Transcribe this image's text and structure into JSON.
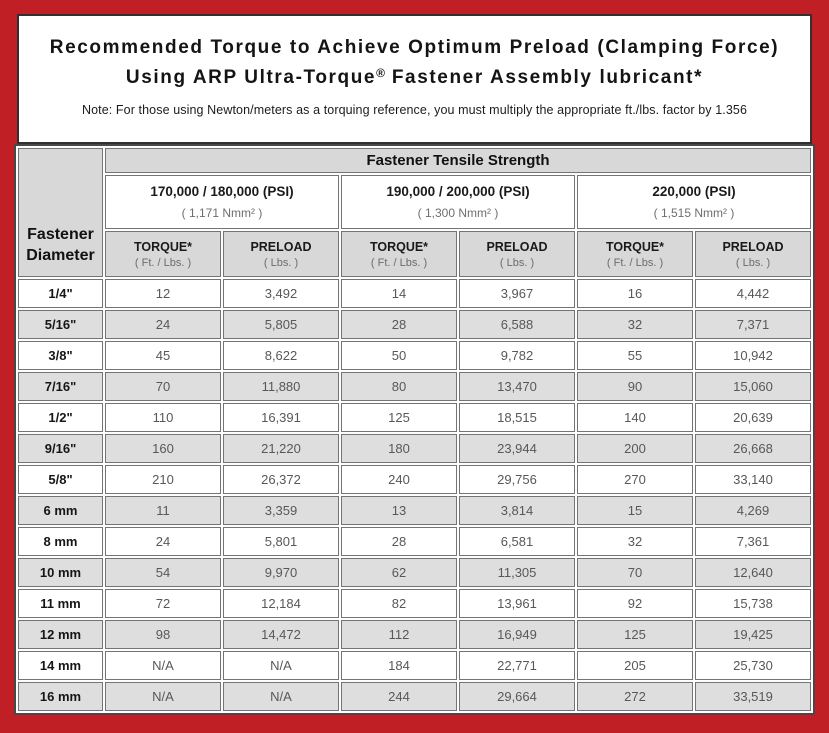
{
  "page": {
    "title_line1": "Recommended Torque to Achieve Optimum Preload (Clamping Force)",
    "subtitle_pre": "Using ARP Ultra-Torque",
    "subtitle_sup": "®",
    "subtitle_post": " Fastener Assembly lubricant*",
    "note": "Note: For those using Newton/meters as a torquing reference, you must multiply the appropriate ft./lbs. factor by 1.356"
  },
  "colors": {
    "frame_red": "#c01f26",
    "header_gray": "#d8d8d8",
    "alt_row_gray": "#dedede",
    "cell_border": "#737476",
    "table_border": "#474849",
    "data_text": "#57585c",
    "label_text": "#111111"
  },
  "chart_data": {
    "type": "table",
    "title": "Recommended Torque to Achieve Optimum Preload (Clamping Force) Using ARP Ultra-Torque® Fastener Assembly lubricant*",
    "note": "Note: For those using Newton/meters as a torquing reference, you must multiply the appropriate ft./lbs. factor by 1.356",
    "tensile_header": "Fastener Tensile Strength",
    "row_header_line1": "Fastener",
    "row_header_line2": "Diameter",
    "column_groups": [
      {
        "psi": "170,000 / 180,000 (PSI)",
        "nmm": "( 1,171 Nmm² )"
      },
      {
        "psi": "190,000 / 200,000 (PSI)",
        "nmm": "( 1,300 Nmm² )"
      },
      {
        "psi": "220,000 (PSI)",
        "nmm": "( 1,515 Nmm² )"
      }
    ],
    "subcolumns": {
      "torque_label": "TORQUE*",
      "torque_unit": "( Ft. / Lbs. )",
      "preload_label": "PRELOAD",
      "preload_unit": "( Lbs. )"
    },
    "rows": [
      {
        "diameter": "1/4\"",
        "values": [
          "12",
          "3,492",
          "14",
          "3,967",
          "16",
          "4,442"
        ]
      },
      {
        "diameter": "5/16\"",
        "values": [
          "24",
          "5,805",
          "28",
          "6,588",
          "32",
          "7,371"
        ]
      },
      {
        "diameter": "3/8\"",
        "values": [
          "45",
          "8,622",
          "50",
          "9,782",
          "55",
          "10,942"
        ]
      },
      {
        "diameter": "7/16\"",
        "values": [
          "70",
          "11,880",
          "80",
          "13,470",
          "90",
          "15,060"
        ]
      },
      {
        "diameter": "1/2\"",
        "values": [
          "110",
          "16,391",
          "125",
          "18,515",
          "140",
          "20,639"
        ]
      },
      {
        "diameter": "9/16\"",
        "values": [
          "160",
          "21,220",
          "180",
          "23,944",
          "200",
          "26,668"
        ]
      },
      {
        "diameter": "5/8\"",
        "values": [
          "210",
          "26,372",
          "240",
          "29,756",
          "270",
          "33,140"
        ]
      },
      {
        "diameter": "6 mm",
        "values": [
          "11",
          "3,359",
          "13",
          "3,814",
          "15",
          "4,269"
        ]
      },
      {
        "diameter": "8 mm",
        "values": [
          "24",
          "5,801",
          "28",
          "6,581",
          "32",
          "7,361"
        ]
      },
      {
        "diameter": "10 mm",
        "values": [
          "54",
          "9,970",
          "62",
          "11,305",
          "70",
          "12,640"
        ]
      },
      {
        "diameter": "11 mm",
        "values": [
          "72",
          "12,184",
          "82",
          "13,961",
          "92",
          "15,738"
        ]
      },
      {
        "diameter": "12 mm",
        "values": [
          "98",
          "14,472",
          "112",
          "16,949",
          "125",
          "19,425"
        ]
      },
      {
        "diameter": "14 mm",
        "values": [
          "N/A",
          "N/A",
          "184",
          "22,771",
          "205",
          "25,730"
        ]
      },
      {
        "diameter": "16 mm",
        "values": [
          "N/A",
          "N/A",
          "244",
          "29,664",
          "272",
          "33,519"
        ]
      }
    ]
  }
}
